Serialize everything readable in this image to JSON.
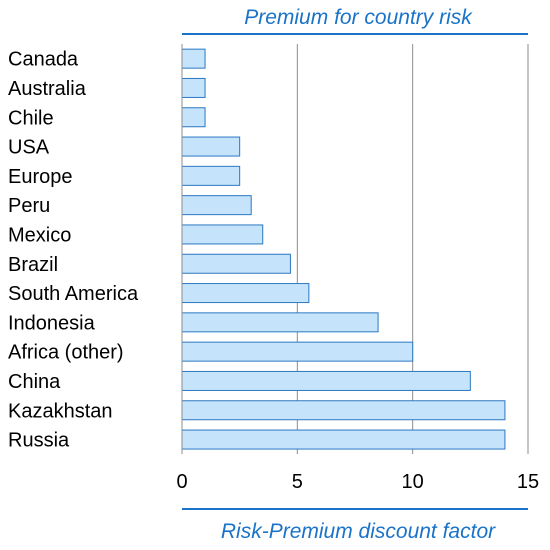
{
  "chart_data": {
    "type": "bar",
    "orientation": "horizontal",
    "title": "Premium for country risk",
    "xlabel": "Risk-Premium discount factor",
    "ylabel": "",
    "categories": [
      "Canada",
      "Australia",
      "Chile",
      "USA",
      "Europe",
      "Peru",
      "Mexico",
      "Brazil",
      "South America",
      "Indonesia",
      "Africa (other)",
      "China",
      "Kazakhstan",
      "Russia"
    ],
    "values": [
      1,
      1,
      1,
      2.5,
      2.5,
      3,
      3.5,
      4.7,
      5.5,
      8.5,
      10,
      12.5,
      14,
      14
    ],
    "xlim": [
      0,
      15
    ],
    "xticks": [
      "0",
      "5",
      "10",
      "15"
    ],
    "grid": "vertical",
    "legend": "none"
  },
  "colors": {
    "bar_fill": "#c5e3fb",
    "bar_stroke": "#2b78c2",
    "title": "#1a73c8",
    "accent_line": "#1a73c8",
    "grid": "#8c8c8c",
    "axis": "#8c8c8c"
  }
}
